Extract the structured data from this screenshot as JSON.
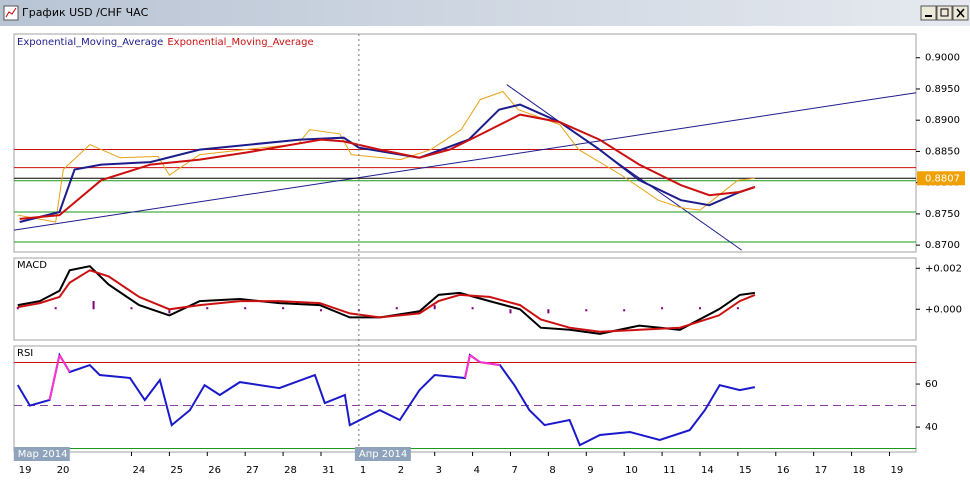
{
  "window": {
    "title": "График USD /CHF  ЧАС"
  },
  "chart_data": [
    {
      "type": "line",
      "ylim": [
        0.8689,
        0.9038
      ],
      "yticks": [
        {
          "value": 0.87,
          "label": "0.8700"
        },
        {
          "value": 0.875,
          "label": "0.8750"
        },
        {
          "value": 0.88,
          "label": "0.8800"
        },
        {
          "value": 0.885,
          "label": "0.8850"
        },
        {
          "value": 0.89,
          "label": "0.8900"
        },
        {
          "value": 0.895,
          "label": "0.8950"
        },
        {
          "value": 0.9,
          "label": "0.9000"
        }
      ],
      "last_price": 0.8807,
      "last_price_color": "#f0a000",
      "levels": [
        {
          "value": 0.8853,
          "color": "#cc1010"
        },
        {
          "value": 0.8824,
          "color": "#cc1010"
        },
        {
          "value": 0.8803,
          "color": "#1a9a1a"
        },
        {
          "value": 0.8753,
          "color": "#1a9a1a"
        },
        {
          "value": 0.8705,
          "color": "#1a9a1a"
        }
      ],
      "trendlines": [
        {
          "x": [
            -0.1,
            23.7
          ],
          "values": [
            0.8724,
            0.8944
          ],
          "color": "#1c1c8c"
        },
        {
          "x": [
            12.9,
            19.1
          ],
          "values": [
            0.8957,
            0.8692
          ],
          "color": "#1c1c8c"
        }
      ],
      "series": [
        {
          "color": "#e8a317",
          "x": [
            0,
            1.0,
            1.2,
            1.9,
            2.7,
            3.7,
            4.0,
            4.8,
            6.0,
            7.4,
            7.7,
            8.5,
            8.8,
            10.1,
            10.9,
            11.7,
            12.2,
            12.8,
            13.2,
            14.3,
            14.8,
            15.9,
            16.9,
            17.5,
            18.0,
            18.5,
            19.0,
            19.45
          ],
          "values": [
            0.8748,
            0.8737,
            0.8821,
            0.8861,
            0.884,
            0.8842,
            0.8812,
            0.8845,
            0.8853,
            0.8862,
            0.8885,
            0.8878,
            0.8845,
            0.8837,
            0.8853,
            0.8885,
            0.8933,
            0.8946,
            0.8917,
            0.8893,
            0.8853,
            0.8813,
            0.8772,
            0.876,
            0.8756,
            0.878,
            0.8804,
            0.8807
          ]
        },
        {
          "name": "Exponential_Moving_Average",
          "color": "#1c1c8c",
          "x": [
            0.05,
            1.1,
            1.5,
            2.2,
            3.5,
            4.8,
            7.45,
            8.6,
            9.0,
            10.6,
            11.9,
            12.7,
            13.25,
            14.3,
            15.35,
            16.4,
            17.5,
            18.25,
            19.05,
            19.45
          ],
          "values": [
            0.8737,
            0.8753,
            0.8821,
            0.8829,
            0.8833,
            0.8853,
            0.8869,
            0.8872,
            0.8856,
            0.884,
            0.8869,
            0.8917,
            0.8925,
            0.8897,
            0.8853,
            0.8804,
            0.8772,
            0.8764,
            0.8785,
            0.8793
          ]
        },
        {
          "name": "Exponential_Moving_Average",
          "color": "#cc1010",
          "x": [
            0.05,
            1.1,
            2.2,
            3.5,
            4.8,
            6.1,
            8.0,
            8.6,
            9.55,
            10.6,
            11.4,
            12.2,
            13.25,
            14.3,
            15.35,
            16.4,
            17.5,
            18.25,
            19.05,
            19.45
          ],
          "values": [
            0.8742,
            0.8748,
            0.8804,
            0.8829,
            0.8837,
            0.8849,
            0.8869,
            0.8866,
            0.8853,
            0.884,
            0.8853,
            0.8877,
            0.8909,
            0.8897,
            0.8869,
            0.8829,
            0.8796,
            0.878,
            0.8785,
            0.8793
          ]
        }
      ]
    },
    {
      "type": "line",
      "title": "MACD",
      "ylim": [
        -0.0015,
        0.0025
      ],
      "yticks": [
        {
          "value": 0,
          "label": "+0.000"
        },
        {
          "value": 0.002,
          "label": "+0.002"
        }
      ],
      "series": [
        {
          "style": "bar",
          "color": "#800080",
          "x": [
            0,
            1,
            2,
            3,
            4,
            5,
            6,
            7,
            8,
            9,
            10,
            11,
            12,
            13,
            14,
            15,
            16,
            17,
            18,
            19
          ],
          "values": [
            0.0001,
            0.0001,
            0.0004,
            0.0001,
            -0.0002,
            0.0001,
            0.0001,
            0.0001,
            -0.0001,
            -0.0001,
            0.0001,
            0.0002,
            0.0001,
            -0.0002,
            -0.0002,
            -0.0001,
            -0.0001,
            0.0001,
            0.0001,
            0.0001
          ]
        },
        {
          "color": "#000000",
          "x": [
            0,
            0.58,
            1.1,
            1.37,
            1.9,
            2.4,
            3.2,
            4.0,
            4.8,
            5.86,
            6.9,
            7.97,
            8.76,
            9.55,
            10.6,
            11.1,
            11.66,
            12.45,
            13.25,
            13.8,
            14.56,
            15.36,
            16.4,
            17.47,
            18.5,
            19.05,
            19.45
          ],
          "values": [
            0.0002,
            0.0004,
            0.0009,
            0.0019,
            0.0021,
            0.0012,
            0.0002,
            -0.0003,
            0.0004,
            0.0005,
            0.0003,
            0.0002,
            -0.0004,
            -0.0004,
            -0.0001,
            0.0007,
            0.0008,
            0.0004,
            0,
            -0.0009,
            -0.001,
            -0.0012,
            -0.0008,
            -0.001,
            0,
            0.0007,
            0.0008
          ]
        },
        {
          "color": "#cc1010",
          "x": [
            0,
            0.58,
            1.1,
            1.37,
            1.9,
            2.4,
            3.2,
            4.0,
            4.8,
            5.86,
            6.9,
            7.97,
            8.76,
            9.55,
            10.6,
            11.1,
            11.66,
            12.45,
            13.25,
            13.8,
            14.56,
            15.36,
            16.4,
            17.47,
            18.5,
            19.05,
            19.45
          ],
          "values": [
            0.0001,
            0.0003,
            0.0006,
            0.0013,
            0.0019,
            0.0016,
            0.0006,
            0,
            0.0002,
            0.0004,
            0.0004,
            0.0003,
            -0.0002,
            -0.0004,
            -0.0002,
            0.0004,
            0.0007,
            0.0006,
            0.0002,
            -0.0005,
            -0.0009,
            -0.0011,
            -0.001,
            -0.0009,
            -0.0003,
            0.0004,
            0.0007
          ]
        }
      ]
    },
    {
      "type": "line",
      "title": "RSI",
      "ylim": [
        28.4,
        77.7
      ],
      "yticks": [
        40,
        60
      ],
      "xlim": [
        -0.1,
        23.7
      ],
      "xticks": [
        {
          "value": 0,
          "label": "19"
        },
        {
          "value": 1,
          "label": "20"
        },
        {
          "value": 3,
          "label": "24"
        },
        {
          "value": 4,
          "label": "25"
        },
        {
          "value": 5,
          "label": "26"
        },
        {
          "value": 6,
          "label": "27"
        },
        {
          "value": 7,
          "label": "28"
        },
        {
          "value": 8,
          "label": "31"
        },
        {
          "value": 9,
          "label": "1"
        },
        {
          "value": 10,
          "label": "2"
        },
        {
          "value": 11,
          "label": "3"
        },
        {
          "value": 12,
          "label": "4"
        },
        {
          "value": 13,
          "label": "7"
        },
        {
          "value": 14,
          "label": "8"
        },
        {
          "value": 15,
          "label": "9"
        },
        {
          "value": 16,
          "label": "10"
        },
        {
          "value": 17,
          "label": "11"
        },
        {
          "value": 18,
          "label": "14"
        },
        {
          "value": 19,
          "label": "15"
        },
        {
          "value": 20,
          "label": "16"
        },
        {
          "value": 21,
          "label": "17"
        },
        {
          "value": 22,
          "label": "18"
        },
        {
          "value": 23,
          "label": "19"
        }
      ],
      "period_labels": [
        {
          "value": 0,
          "label": "Мар 2014"
        },
        {
          "value": 9,
          "label": "Апр 2014"
        }
      ],
      "levels": [
        {
          "value": 70,
          "color": "#cc1010"
        },
        {
          "value": 50,
          "color": "#8b3fa0",
          "dash": true
        },
        {
          "value": 30,
          "color": "#1a9a1a"
        }
      ],
      "overbought_color": "#ff33cc",
      "series": [
        {
          "color": "#1a1acc",
          "x": [
            0,
            0.32,
            0.84,
            1.1,
            1.37,
            1.9,
            2.16,
            2.96,
            3.35,
            3.75,
            4.06,
            4.54,
            4.93,
            5.33,
            5.86,
            6.9,
            7.84,
            8.1,
            8.63,
            8.76,
            9.55,
            10.08,
            10.6,
            11.0,
            11.8,
            11.93,
            12.19,
            12.72,
            13.1,
            13.5,
            13.9,
            14.56,
            14.83,
            15.36,
            16.15,
            16.94,
            17.73,
            18.13,
            18.52,
            19.05,
            19.45
          ],
          "values": [
            59.5,
            50,
            52.6,
            73.5,
            65.6,
            68.8,
            64.2,
            62.8,
            52.6,
            61.9,
            40.9,
            47.9,
            59.5,
            54.9,
            60.9,
            58.1,
            64.2,
            51.2,
            54.9,
            40.9,
            47.9,
            43.3,
            57.2,
            64.2,
            62.8,
            73.5,
            70.2,
            68.8,
            59.5,
            47.9,
            40.9,
            43.3,
            31.6,
            36.3,
            37.7,
            34,
            38.6,
            47.9,
            59.5,
            57.2,
            58.6
          ]
        }
      ]
    }
  ]
}
